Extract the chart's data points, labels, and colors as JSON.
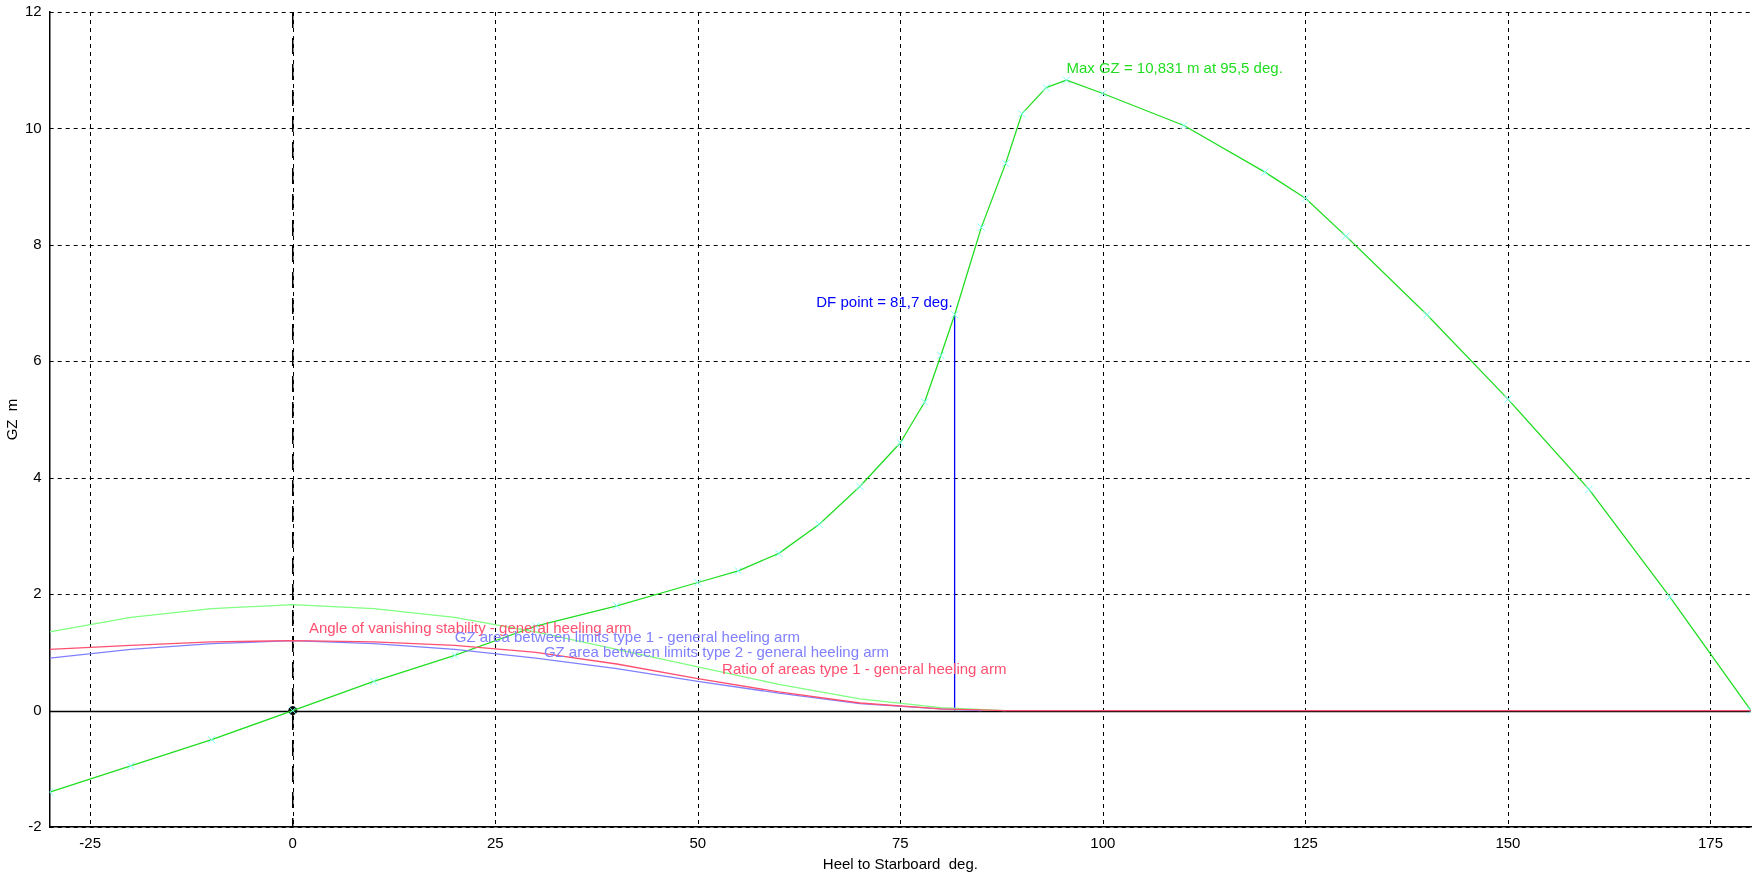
{
  "chart_data": {
    "type": "line",
    "xlabel": "Heel to Starboard  deg.",
    "ylabel": "GZ  m",
    "xlim": [
      -30,
      180
    ],
    "xticks": [
      -25,
      0,
      25,
      50,
      75,
      100,
      125,
      150,
      175
    ],
    "ylim": [
      -2,
      12
    ],
    "yticks": [
      -2,
      0,
      2,
      4,
      6,
      8,
      10,
      12
    ],
    "grid": true,
    "legend": false,
    "line_style": "solid",
    "series": [
      {
        "color": "#ff5070",
        "marker": "none",
        "x": [
          -30,
          -20,
          -10,
          0,
          10,
          20,
          30,
          40,
          50,
          60,
          70,
          80,
          88,
          100,
          120,
          140,
          160,
          180
        ],
        "values": [
          1.05,
          1.12,
          1.18,
          1.2,
          1.18,
          1.12,
          1.0,
          0.8,
          0.55,
          0.32,
          0.13,
          0.03,
          0,
          0,
          0,
          0,
          0,
          0
        ]
      },
      {
        "color": "#80ff80",
        "marker": "none",
        "x": [
          -30,
          -20,
          -10,
          0,
          10,
          20,
          30,
          40,
          50,
          60,
          70,
          80,
          88
        ],
        "values": [
          1.35,
          1.6,
          1.75,
          1.82,
          1.75,
          1.6,
          1.35,
          1.05,
          0.75,
          0.45,
          0.2,
          0.05,
          0
        ]
      },
      {
        "color": "#8080ff",
        "marker": "none",
        "x": [
          -30,
          -20,
          -10,
          0,
          10,
          20,
          30,
          40,
          50,
          60,
          70,
          80,
          85
        ],
        "values": [
          0.9,
          1.05,
          1.15,
          1.2,
          1.15,
          1.05,
          0.9,
          0.72,
          0.5,
          0.3,
          0.12,
          0.03,
          0
        ]
      },
      {
        "color": "#22dd22",
        "marker": "cross",
        "x": [
          -30,
          -20,
          -10,
          0,
          10,
          20,
          30,
          40,
          50,
          55,
          60,
          65,
          70,
          75,
          78,
          80,
          81.7,
          85,
          88,
          90,
          93,
          95.5,
          100,
          110,
          120,
          125,
          130,
          140,
          150,
          160,
          170,
          180
        ],
        "values": [
          -1.4,
          -0.95,
          -0.5,
          0,
          0.5,
          0.95,
          1.45,
          1.8,
          2.2,
          2.4,
          2.7,
          3.2,
          3.85,
          4.6,
          5.3,
          6.1,
          6.8,
          8.3,
          9.4,
          10.25,
          10.7,
          10.83,
          10.6,
          10.05,
          9.25,
          8.8,
          8.15,
          6.8,
          5.35,
          3.8,
          1.95,
          0
        ]
      },
      {
        "color": "#0000ff",
        "marker": "none",
        "x": [
          81.7,
          81.7
        ],
        "values": [
          0,
          6.8
        ]
      },
      {
        "color": "#000000",
        "marker": "circle",
        "x": [
          0
        ],
        "values": [
          0
        ]
      }
    ],
    "ref_lines": [
      {
        "axis": "x",
        "value": 0,
        "color": "#000000",
        "line_style": "dashed"
      }
    ],
    "annotations": [
      {
        "text": "Max GZ = 10,831 m at 95,5 deg.",
        "x": 95.5,
        "y": 10.83
      },
      {
        "text": "DF point = 81,7 deg.",
        "x": 81.7,
        "y": 6.8
      },
      {
        "text": "Angle of vanishing stability - general heeling arm",
        "x": 2,
        "y": 1.2
      },
      {
        "text": "GZ area between limits type 1 - general heeling arm",
        "x": 20,
        "y": 1.05
      },
      {
        "text": "GZ area between limits type 2 - general heeling arm",
        "x": 31,
        "y": 0.8
      },
      {
        "text": "Ratio of areas type 1 - general heeling arm",
        "x": 53,
        "y": 0.5
      }
    ]
  }
}
